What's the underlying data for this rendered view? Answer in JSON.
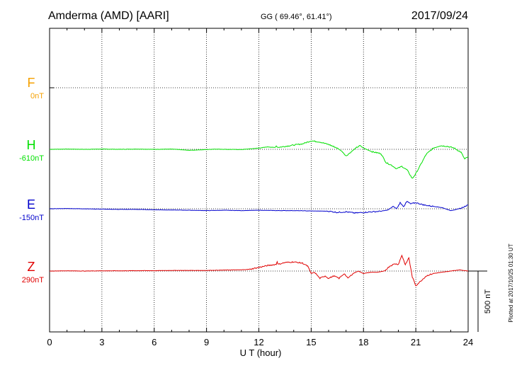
{
  "header": {
    "station": "Amderma (AMD)  [AARI]",
    "coords": "GG ( 69.46°,  61.41°)",
    "date": "2017/09/24"
  },
  "plotted_note": "Plotted at 2017/10/25 01:30 UT",
  "colors": {
    "F": "#f5a000",
    "H": "#00e000",
    "E": "#0000cc",
    "Z": "#e00000",
    "frame": "#000000"
  },
  "chart_data": {
    "type": "line",
    "xlabel": "U T (hour)",
    "xlim": [
      0,
      24
    ],
    "x_ticks": [
      "0",
      "3",
      "6",
      "9",
      "12",
      "15",
      "18",
      "21",
      "24"
    ],
    "grid": true,
    "scale_bar": {
      "label": "500 nT",
      "value_nT": 500
    },
    "channels": [
      {
        "name": "F",
        "baseline_label": "0nT",
        "baseline_nT": 0
      },
      {
        "name": "H",
        "baseline_label": "-610nT",
        "baseline_nT": -610
      },
      {
        "name": "E",
        "baseline_label": "-150nT",
        "baseline_nT": -150
      },
      {
        "name": "Z",
        "baseline_label": "290nT",
        "baseline_nT": 290
      }
    ],
    "series": [
      {
        "name": "H",
        "x": [
          0,
          1,
          2,
          3,
          4,
          5,
          6,
          7,
          8,
          8.5,
          9,
          9.5,
          10,
          11,
          12,
          12.5,
          12.9,
          13.0,
          13.1,
          13.3,
          14,
          14.5,
          15,
          15.5,
          16,
          16.5,
          16.8,
          17,
          17.3,
          17.6,
          17.8,
          18,
          18.5,
          19,
          19.3,
          19.6,
          19.9,
          20.2,
          20.5,
          20.8,
          21,
          21.3,
          21.6,
          22,
          22.4,
          22.8,
          23.2,
          23.6,
          23.8,
          24
        ],
        "y": [
          0,
          2,
          0,
          2,
          0,
          2,
          0,
          2,
          -8,
          -5,
          -2,
          2,
          0,
          -2,
          10,
          20,
          15,
          28,
          15,
          20,
          35,
          45,
          70,
          60,
          40,
          10,
          -20,
          -55,
          -20,
          15,
          30,
          10,
          -20,
          -35,
          -110,
          -130,
          -160,
          -140,
          -170,
          -240,
          -200,
          -120,
          -40,
          10,
          30,
          25,
          10,
          -25,
          -80,
          -60
        ]
      },
      {
        "name": "E",
        "x": [
          0,
          1,
          2,
          3,
          4,
          5,
          6,
          7,
          8,
          9,
          10,
          11,
          12,
          13,
          14,
          15,
          16,
          16.5,
          17,
          17.5,
          18,
          18.5,
          19,
          19.4,
          19.7,
          19.9,
          20.1,
          20.3,
          20.5,
          20.7,
          21,
          21.5,
          22,
          22.5,
          23,
          23.5,
          24
        ],
        "y": [
          0,
          2,
          0,
          -3,
          -5,
          -5,
          -8,
          -10,
          -12,
          -15,
          -12,
          -15,
          -12,
          -15,
          -15,
          -18,
          -20,
          -30,
          -25,
          -35,
          -30,
          -25,
          -20,
          -10,
          20,
          0,
          50,
          20,
          60,
          40,
          50,
          30,
          20,
          10,
          -15,
          0,
          30
        ]
      },
      {
        "name": "Z",
        "x": [
          0,
          1,
          2,
          3,
          4,
          5,
          6,
          7,
          8,
          9,
          10,
          11,
          11.5,
          12,
          12.5,
          13,
          13.05,
          13.1,
          13.5,
          14,
          14.5,
          14.8,
          15,
          15.2,
          15.5,
          15.8,
          16,
          16.3,
          16.6,
          16.9,
          17.1,
          17.4,
          17.7,
          18,
          18.4,
          18.8,
          19.2,
          19.5,
          19.8,
          20,
          20.2,
          20.4,
          20.6,
          20.8,
          21,
          21.3,
          21.6,
          22,
          22.5,
          23,
          23.5,
          24
        ],
        "y": [
          0,
          2,
          0,
          2,
          2,
          3,
          3,
          5,
          5,
          5,
          8,
          10,
          15,
          30,
          45,
          55,
          80,
          55,
          70,
          75,
          65,
          40,
          -20,
          -10,
          -60,
          -40,
          -60,
          -40,
          -60,
          -20,
          -60,
          -20,
          0,
          -20,
          -10,
          -10,
          0,
          40,
          60,
          55,
          130,
          50,
          110,
          -50,
          -120,
          -80,
          -40,
          -20,
          -10,
          0,
          10,
          0
        ]
      }
    ]
  }
}
